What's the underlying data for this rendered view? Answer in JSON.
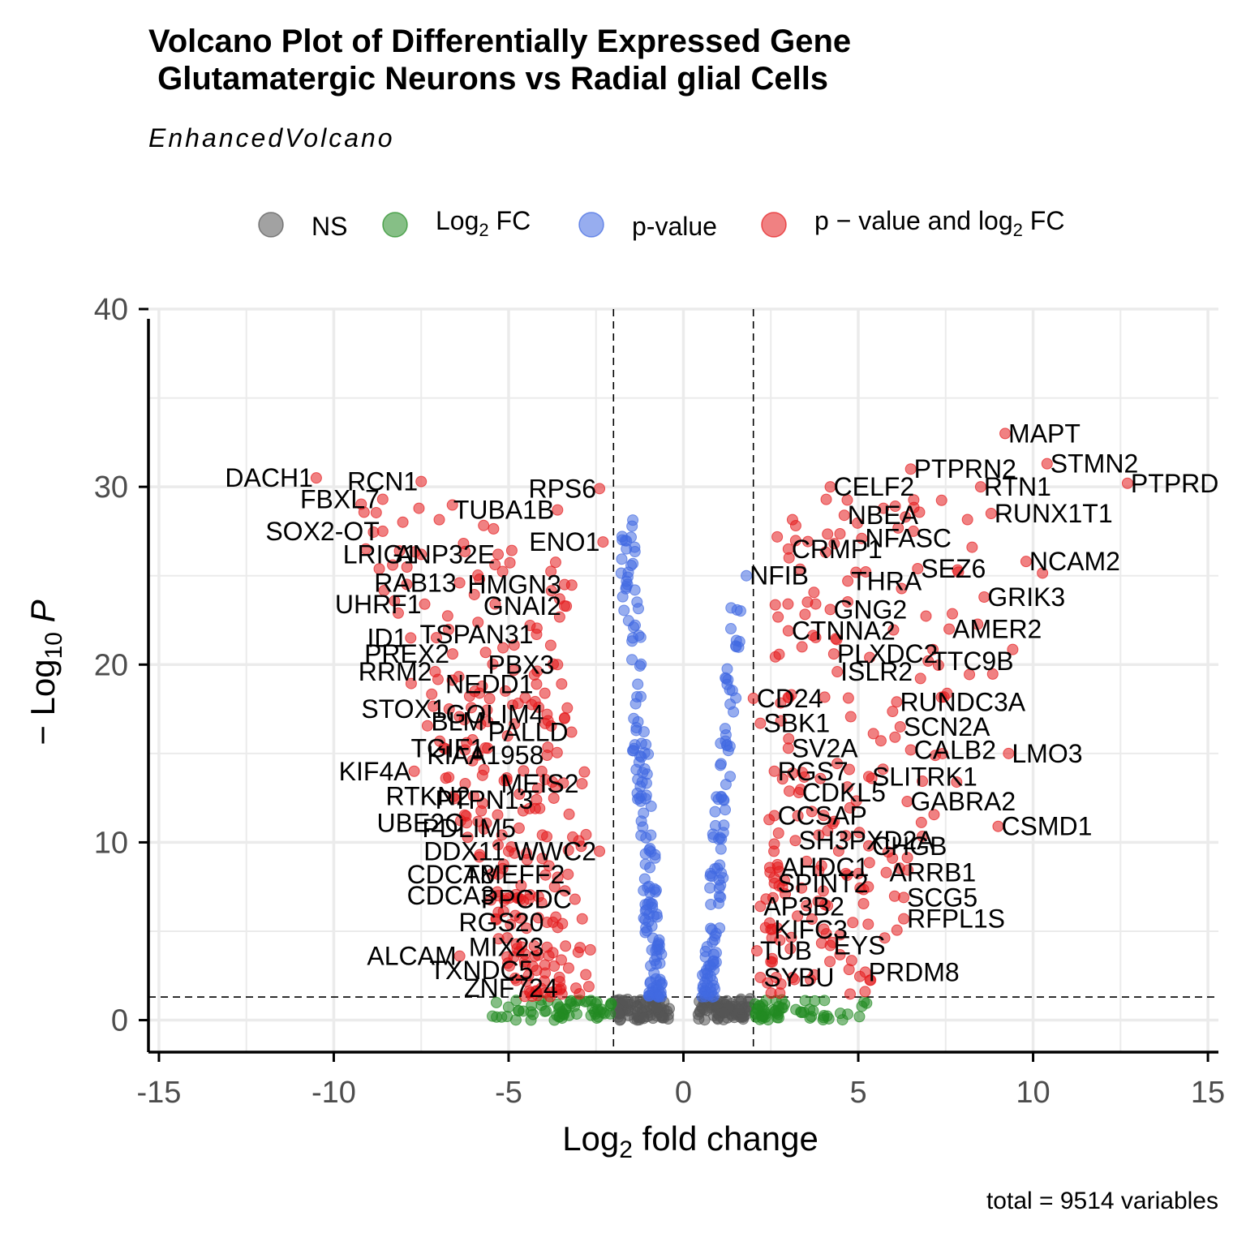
{
  "chart_data": {
    "type": "scatter",
    "title": "Volcano Plot of Differentially Expressed Gene\n Glutamatergic Neurons vs Radial glial Cells",
    "subtitle": "EnhancedVolcano",
    "caption": "total = 9514 variables",
    "xlabel": "Log2 fold change",
    "ylabel": "-Log10 P",
    "xlim": [
      -15.3,
      15.3
    ],
    "ylim": [
      -1.8,
      40
    ],
    "xticks": [
      -15,
      -10,
      -5,
      0,
      5,
      10,
      15
    ],
    "yticks": [
      0,
      10,
      20,
      30,
      40
    ],
    "grid": true,
    "fc_cutoff": 2,
    "p_cutoff_log10": 1.3,
    "legend": {
      "position": "top",
      "entries": [
        {
          "key": "NS",
          "label": "NS",
          "color": "#555555"
        },
        {
          "key": "FC",
          "label": "Log",
          "sub": "2",
          "suffix": " FC",
          "color": "#228B22"
        },
        {
          "key": "P",
          "label": "p-value",
          "color": "#4169E1"
        },
        {
          "key": "PFC",
          "label": "p − value and log",
          "sub": "2",
          "suffix": " FC",
          "color": "#E41A1C"
        }
      ]
    },
    "labeled_genes": [
      {
        "gene": "MAPT",
        "x": 9.2,
        "y": 33.0
      },
      {
        "gene": "STMN2",
        "x": 10.4,
        "y": 31.3
      },
      {
        "gene": "PTPRD",
        "x": 12.7,
        "y": 30.2
      },
      {
        "gene": "PTPRN2",
        "x": 6.5,
        "y": 31.0
      },
      {
        "gene": "RTN1",
        "x": 8.5,
        "y": 30.0
      },
      {
        "gene": "RUNX1T1",
        "x": 8.8,
        "y": 28.5
      },
      {
        "gene": "NCAM2",
        "x": 9.8,
        "y": 25.8
      },
      {
        "gene": "GRIK3",
        "x": 8.6,
        "y": 23.8
      },
      {
        "gene": "AMER2",
        "x": 7.6,
        "y": 22.0
      },
      {
        "gene": "TTC9B",
        "x": 7.0,
        "y": 20.2
      },
      {
        "gene": "RUNDC3A",
        "x": 6.1,
        "y": 17.9
      },
      {
        "gene": "SCN2A",
        "x": 6.2,
        "y": 16.5
      },
      {
        "gene": "CALB2",
        "x": 6.5,
        "y": 15.2
      },
      {
        "gene": "LMO3",
        "x": 9.3,
        "y": 15.0
      },
      {
        "gene": "SLITRK1",
        "x": 5.3,
        "y": 13.7
      },
      {
        "gene": "GABRA2",
        "x": 6.4,
        "y": 12.3
      },
      {
        "gene": "CSMD1",
        "x": 9.0,
        "y": 10.9
      },
      {
        "gene": "CHGB",
        "x": 5.3,
        "y": 9.8
      },
      {
        "gene": "ARRB1",
        "x": 5.8,
        "y": 8.3
      },
      {
        "gene": "SCG5",
        "x": 6.3,
        "y": 6.9
      },
      {
        "gene": "RFPL1S",
        "x": 6.3,
        "y": 5.7
      },
      {
        "gene": "EYS",
        "x": 4.2,
        "y": 4.2
      },
      {
        "gene": "PRDM8",
        "x": 5.2,
        "y": 2.7
      },
      {
        "gene": "CELF2",
        "x": 4.2,
        "y": 30.0
      },
      {
        "gene": "NBEA",
        "x": 4.6,
        "y": 28.4
      },
      {
        "gene": "NFASC",
        "x": 5.1,
        "y": 27.1
      },
      {
        "gene": "SEZ6",
        "x": 6.7,
        "y": 25.4
      },
      {
        "gene": "THRA",
        "x": 4.7,
        "y": 24.7
      },
      {
        "gene": "GNG2",
        "x": 4.2,
        "y": 23.1
      },
      {
        "gene": "CRMP1",
        "x": 3.0,
        "y": 26.5
      },
      {
        "gene": "NFIB",
        "x": 1.8,
        "y": 25.0
      },
      {
        "gene": "CTNNA2",
        "x": 3.0,
        "y": 21.9
      },
      {
        "gene": "PLXDC2",
        "x": 4.3,
        "y": 20.6
      },
      {
        "gene": "ISLR2",
        "x": 4.4,
        "y": 19.6
      },
      {
        "gene": "CD24",
        "x": 2.0,
        "y": 18.1
      },
      {
        "gene": "SBK1",
        "x": 2.2,
        "y": 16.7
      },
      {
        "gene": "SV2A",
        "x": 3.0,
        "y": 15.3
      },
      {
        "gene": "RGS7",
        "x": 2.6,
        "y": 14.0
      },
      {
        "gene": "CDKL5",
        "x": 3.3,
        "y": 12.8
      },
      {
        "gene": "CCSAP",
        "x": 2.6,
        "y": 11.5
      },
      {
        "gene": "SH3PXD2A",
        "x": 3.2,
        "y": 10.1
      },
      {
        "gene": "AHDC1",
        "x": 2.7,
        "y": 8.6
      },
      {
        "gene": "SPINT2",
        "x": 2.6,
        "y": 7.7
      },
      {
        "gene": "AP3B2",
        "x": 2.2,
        "y": 6.4
      },
      {
        "gene": "KIFC3",
        "x": 2.5,
        "y": 5.1
      },
      {
        "gene": "TUB",
        "x": 2.1,
        "y": 3.9
      },
      {
        "gene": "SYBU",
        "x": 2.2,
        "y": 2.4
      },
      {
        "gene": "DACH1",
        "x": -10.5,
        "y": 30.5
      },
      {
        "gene": "RCN1",
        "x": -7.5,
        "y": 30.3
      },
      {
        "gene": "FBXL7",
        "x": -8.6,
        "y": 29.3
      },
      {
        "gene": "SOX2-OT",
        "x": -8.6,
        "y": 27.5
      },
      {
        "gene": "LRIG1",
        "x": -7.5,
        "y": 26.2
      },
      {
        "gene": "ANP32E",
        "x": -5.3,
        "y": 26.2
      },
      {
        "gene": "RAB13",
        "x": -6.4,
        "y": 24.6
      },
      {
        "gene": "UHRF1",
        "x": -7.4,
        "y": 23.4
      },
      {
        "gene": "ID1",
        "x": -7.8,
        "y": 21.5
      },
      {
        "gene": "PREX2",
        "x": -6.6,
        "y": 20.6
      },
      {
        "gene": "RRM2",
        "x": -7.1,
        "y": 19.6
      },
      {
        "gene": "STOX1",
        "x": -6.7,
        "y": 17.5
      },
      {
        "gene": "BLM",
        "x": -5.6,
        "y": 16.8
      },
      {
        "gene": "TGIF1",
        "x": -5.6,
        "y": 15.3
      },
      {
        "gene": "KIF4A",
        "x": -7.7,
        "y": 14.0
      },
      {
        "gene": "RTKN2",
        "x": -6.0,
        "y": 12.6
      },
      {
        "gene": "UBE2C",
        "x": -6.2,
        "y": 11.1
      },
      {
        "gene": "DDX11",
        "x": -5.0,
        "y": 9.5
      },
      {
        "gene": "CDCA8",
        "x": -5.3,
        "y": 8.2
      },
      {
        "gene": "CDCA3",
        "x": -5.3,
        "y": 7.0
      },
      {
        "gene": "ALCAM",
        "x": -6.4,
        "y": 3.6
      },
      {
        "gene": "RPS6",
        "x": -2.4,
        "y": 29.9
      },
      {
        "gene": "TUBA1B",
        "x": -3.6,
        "y": 28.7
      },
      {
        "gene": "ENO1",
        "x": -2.3,
        "y": 26.9
      },
      {
        "gene": "HMGN3",
        "x": -3.4,
        "y": 24.5
      },
      {
        "gene": "GNAI2",
        "x": -3.4,
        "y": 23.3
      },
      {
        "gene": "TSPAN31",
        "x": -4.2,
        "y": 21.7
      },
      {
        "gene": "PBX3",
        "x": -3.6,
        "y": 20.0
      },
      {
        "gene": "NEDD1",
        "x": -4.2,
        "y": 18.9
      },
      {
        "gene": "GOLIM4",
        "x": -3.9,
        "y": 17.2
      },
      {
        "gene": "PALLD",
        "x": -3.2,
        "y": 16.2
      },
      {
        "gene": "KIAA1958",
        "x": -3.9,
        "y": 14.9
      },
      {
        "gene": "MEIS2",
        "x": -2.9,
        "y": 13.3
      },
      {
        "gene": "PTPN13",
        "x": -4.2,
        "y": 12.4
      },
      {
        "gene": "PDLIM5",
        "x": -4.7,
        "y": 10.8
      },
      {
        "gene": "WWC2",
        "x": -2.4,
        "y": 9.5
      },
      {
        "gene": "TMEFF2",
        "x": -3.3,
        "y": 8.2
      },
      {
        "gene": "PPCDC",
        "x": -3.1,
        "y": 6.8
      },
      {
        "gene": "RGS20",
        "x": -3.9,
        "y": 5.5
      },
      {
        "gene": "MIX23",
        "x": -3.9,
        "y": 4.1
      },
      {
        "gene": "TXNDC5",
        "x": -4.2,
        "y": 2.8
      },
      {
        "gene": "ZNF724",
        "x": -3.5,
        "y": 1.8
      }
    ]
  }
}
